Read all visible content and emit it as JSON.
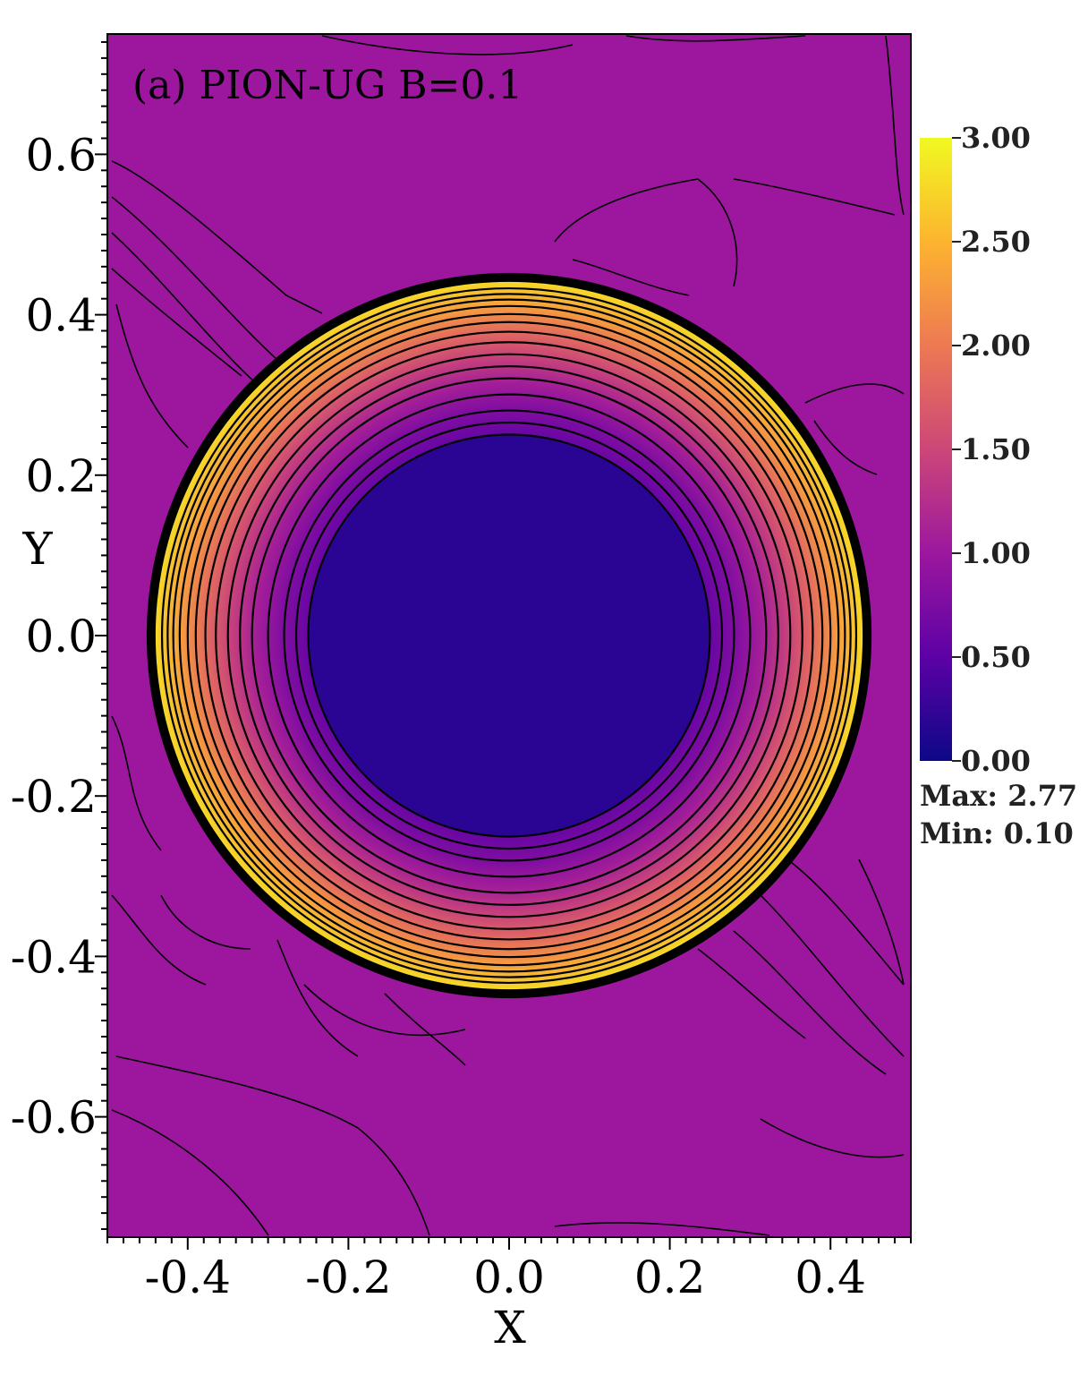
{
  "chart_data": {
    "type": "heatmap",
    "title": "(a) PION-UG B=0.1",
    "xlabel": "X",
    "ylabel": "Y",
    "xlim": [
      -0.5,
      0.5
    ],
    "ylim": [
      -0.75,
      0.75
    ],
    "x_ticks": [
      -0.4,
      -0.2,
      0.0,
      0.2,
      0.4
    ],
    "x_tick_labels": [
      "-0.4",
      "-0.2",
      "0.0",
      "0.2",
      "0.4"
    ],
    "y_ticks": [
      -0.6,
      -0.4,
      -0.2,
      0.0,
      0.2,
      0.4,
      0.6
    ],
    "y_tick_labels": [
      "-0.6",
      "-0.4",
      "-0.2",
      "0.0",
      "0.2",
      "0.4",
      "0.6"
    ],
    "colorbar": {
      "min": 0.0,
      "max": 3.0,
      "ticks": [
        0.0,
        0.5,
        1.0,
        1.5,
        2.0,
        2.5,
        3.0
      ],
      "tick_labels": [
        "0.00",
        "0.50",
        "1.00",
        "1.50",
        "2.00",
        "2.50",
        "3.00"
      ],
      "colormap": "plasma",
      "stops": [
        "#0d0887",
        "#5c01a6",
        "#9c179e",
        "#cc4778",
        "#ed7953",
        "#fdb42f",
        "#f0f921"
      ]
    },
    "field": {
      "background_value": 1.0,
      "inner_region": {
        "radius": 0.25,
        "value": 0.1
      },
      "shell": {
        "inner_radius": 0.25,
        "outer_radius": 0.44,
        "min_value": 0.6,
        "max_value": 2.77
      },
      "contour_radii": [
        0.25,
        0.265,
        0.28,
        0.3,
        0.32,
        0.335,
        0.35,
        0.365,
        0.378,
        0.39,
        0.4,
        0.41,
        0.418,
        0.425,
        0.432,
        0.445
      ]
    },
    "stats": {
      "max_label": "Max: 2.77",
      "min_label": "Min: 0.10"
    },
    "colors": {
      "background": "#9c179e",
      "inner": "#2a0593",
      "contour": "#000000"
    }
  }
}
